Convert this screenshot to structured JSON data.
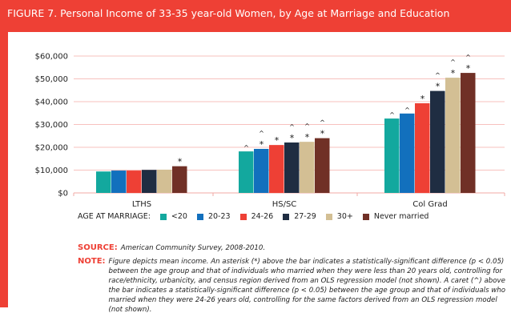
{
  "title": "FIGURE 7.  Personal Income of 33-35 year-old Women, by Age at Marriage and Education",
  "chart_data": {
    "type": "bar",
    "title": "Personal Income of 33-35 year-old Women, by Age at Marriage and Education",
    "categories": [
      "LTHS",
      "HS/SC",
      "Col Grad"
    ],
    "ylim": [
      0,
      60000
    ],
    "yticks": [
      0,
      10000,
      20000,
      30000,
      40000,
      50000,
      60000
    ],
    "ytick_labels": [
      "$0",
      "$10,000",
      "$20,000",
      "$30,000",
      "$40,000",
      "$50,000",
      "$60,000"
    ],
    "grid": true,
    "legend_title": "AGE AT MARRIAGE:",
    "legend_position": "bottom",
    "series": [
      {
        "name": "<20",
        "color": "#13a89e",
        "values": [
          9400,
          18200,
          32600
        ],
        "marks": [
          "",
          "^",
          "^"
        ]
      },
      {
        "name": "20-23",
        "color": "#1270bd",
        "values": [
          9800,
          19300,
          34800
        ],
        "marks": [
          "",
          "^*",
          "^"
        ]
      },
      {
        "name": "24-26",
        "color": "#ee4035",
        "values": [
          9800,
          21000,
          39300
        ],
        "marks": [
          "",
          "*",
          "*"
        ]
      },
      {
        "name": "27-29",
        "color": "#1f2d42",
        "values": [
          10100,
          22100,
          44700
        ],
        "marks": [
          "",
          "^*",
          "^*"
        ]
      },
      {
        "name": "30+",
        "color": "#d3bf94",
        "values": [
          10200,
          22400,
          50500
        ],
        "marks": [
          "",
          "^*",
          "^*"
        ]
      },
      {
        "name": "Never married",
        "color": "#703026",
        "values": [
          11700,
          24000,
          52600
        ],
        "marks": [
          "*",
          "^*",
          "^*"
        ]
      }
    ]
  },
  "source": {
    "label": "SOURCE:",
    "text": "American Community Survey, 2008-2010."
  },
  "note": {
    "label": "NOTE:",
    "text": "Figure depicts mean income. An asterisk (*) above the bar indicates a statistically-significant difference (p < 0.05) between the age group and that of individuals who married when they were less than 20 years old, controlling for race/ethnicity, urbanicity, and census region derived from an OLS regression model (not shown). A caret (^) above the bar indicates a statistically-significant difference (p < 0.05) between the age group and that of individuals who married when they were 24-26 years old, controlling for the same factors derived from an OLS regression model (not shown)."
  }
}
